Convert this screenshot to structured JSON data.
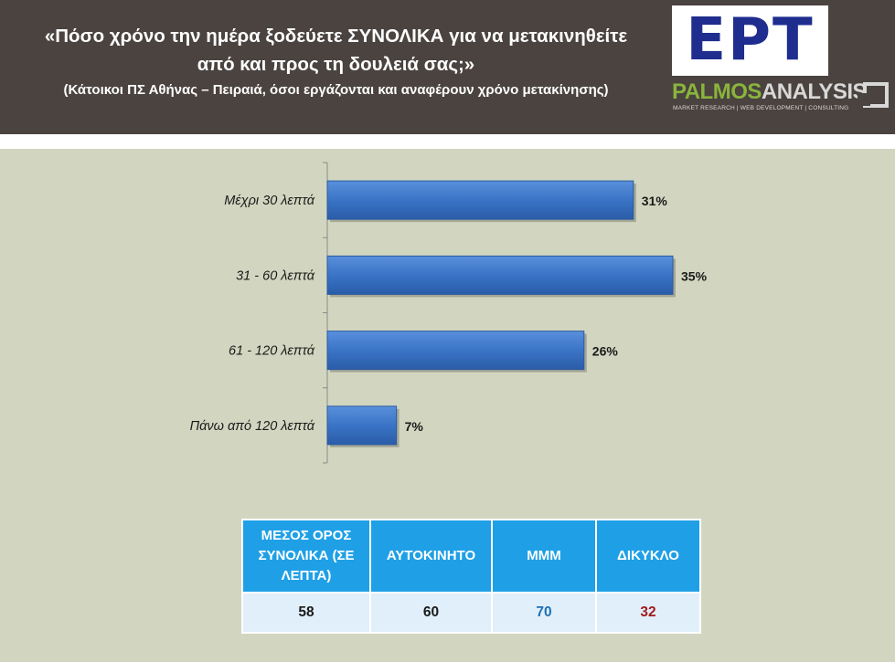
{
  "header": {
    "title_line1": "«Πόσο χρόνο την ημέρα ξοδεύετε ΣΥΝΟΛΙΚΑ για να μετακινηθείτε",
    "title_line2": "από και προς τη δουλειά σας;»",
    "subtitle": "(Κάτοικοι ΠΣ Αθήνας – Πειραιά, όσοι εργάζονται και αναφέρουν χρόνο μετακίνησης)"
  },
  "logos": {
    "ert": "ΕΡΤ",
    "palmos_part1": "PALMOS",
    "palmos_part2": "ANALYSIS",
    "palmos_tagline": "MARKET RESEARCH | WEB DEVELOPMENT | CONSULTING"
  },
  "chart_data": {
    "type": "bar",
    "orientation": "horizontal",
    "categories": [
      "Μέχρι 30 λεπτά",
      "31 - 60 λεπτά",
      "61 - 120 λεπτά",
      "Πάνω από 120 λεπτά"
    ],
    "values": [
      31,
      35,
      26,
      7
    ],
    "value_labels": [
      "31%",
      "35%",
      "26%",
      "7%"
    ],
    "unit": "%",
    "xlim": [
      0,
      40
    ],
    "bar_color": "#3a74c6",
    "grid": false
  },
  "summary_table": {
    "headers": [
      "ΜΕΣΟΣ ΟΡΟΣ ΣΥΝΟΛΙΚΑ (ΣΕ ΛΕΠΤΑ)",
      "ΑΥΤΟΚΙΝΗΤΟ",
      "ΜΜΜ",
      "ΔΙΚΥΚΛΟ"
    ],
    "values": [
      "58",
      "60",
      "70",
      "32"
    ],
    "value_colors": [
      "#1a1a1a",
      "#1a1a1a",
      "#1f6fb5",
      "#a01c1c"
    ]
  },
  "colors": {
    "header_bg": "#4a4340",
    "panel_bg": "#d2d6c0",
    "table_header_bg": "#1fa0e6",
    "table_value_bg": "#e0effa"
  }
}
